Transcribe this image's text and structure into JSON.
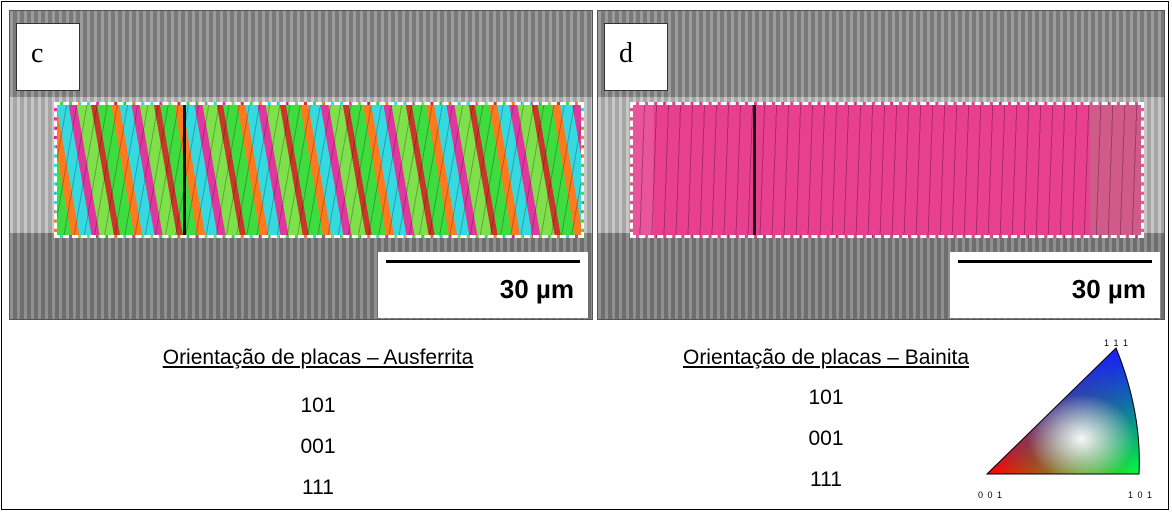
{
  "panels": [
    {
      "label": "c",
      "scale_bar": "30 µm",
      "title": "Orientação de placas – Ausferrita",
      "orientations": [
        "101",
        "001",
        "111"
      ]
    },
    {
      "label": "d",
      "scale_bar": "30 µm",
      "title": "Orientação de placas – Bainita",
      "orientations": [
        "101",
        "001",
        "111"
      ]
    }
  ],
  "legend": {
    "top": "1 1 1",
    "bottom_left": "0 0 1",
    "bottom_right": "1 0 1"
  }
}
